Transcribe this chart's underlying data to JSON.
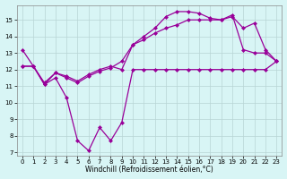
{
  "line1_x": [
    0,
    1,
    2,
    3,
    4,
    5,
    6,
    7,
    8,
    9,
    10,
    11,
    12,
    13,
    14,
    15,
    16,
    17,
    18,
    19,
    20,
    21,
    22,
    23
  ],
  "line1_y": [
    13.2,
    12.2,
    11.1,
    11.5,
    10.3,
    7.7,
    7.1,
    8.5,
    7.7,
    8.8,
    12.0,
    12.0,
    12.0,
    12.0,
    12.0,
    12.0,
    12.0,
    12.0,
    12.0,
    12.0,
    12.0,
    12.0,
    12.0,
    12.5
  ],
  "line2_x": [
    0,
    1,
    2,
    3,
    4,
    5,
    6,
    7,
    8,
    9,
    10,
    11,
    12,
    13,
    14,
    15,
    16,
    17,
    18,
    19,
    20,
    21,
    22,
    23
  ],
  "line2_y": [
    12.2,
    12.2,
    11.2,
    11.8,
    11.6,
    11.3,
    11.7,
    12.0,
    12.2,
    12.0,
    13.5,
    14.0,
    14.5,
    15.2,
    15.5,
    15.5,
    15.4,
    15.1,
    15.0,
    15.3,
    13.2,
    13.0,
    13.0,
    12.5
  ],
  "line3_x": [
    0,
    1,
    2,
    3,
    4,
    5,
    6,
    7,
    8,
    9,
    10,
    11,
    12,
    13,
    14,
    15,
    16,
    17,
    18,
    19,
    20,
    21,
    22,
    23
  ],
  "line3_y": [
    12.2,
    12.2,
    11.1,
    11.8,
    11.5,
    11.2,
    11.6,
    11.9,
    12.1,
    12.5,
    13.5,
    13.8,
    14.2,
    14.5,
    14.7,
    15.0,
    15.0,
    15.0,
    15.0,
    15.2,
    14.5,
    14.8,
    13.2,
    12.5
  ],
  "color": "#990099",
  "bg_color": "#d8f5f5",
  "grid_color": "#b8d4d4",
  "xlim": [
    -0.5,
    23.5
  ],
  "ylim": [
    6.8,
    15.9
  ],
  "yticks": [
    7,
    8,
    9,
    10,
    11,
    12,
    13,
    14,
    15
  ],
  "xticks": [
    0,
    1,
    2,
    3,
    4,
    5,
    6,
    7,
    8,
    9,
    10,
    11,
    12,
    13,
    14,
    15,
    16,
    17,
    18,
    19,
    20,
    21,
    22,
    23
  ],
  "xlabel": "Windchill (Refroidissement éolien,°C)",
  "marker": "D",
  "markersize": 2,
  "linewidth": 0.9,
  "tick_fontsize": 5,
  "xlabel_fontsize": 5.5
}
